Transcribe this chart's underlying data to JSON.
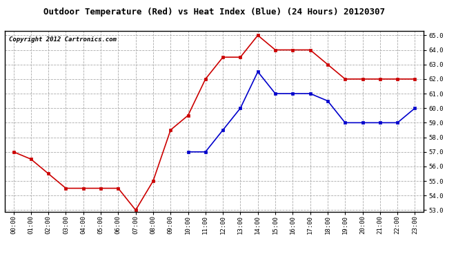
{
  "title": "Outdoor Temperature (Red) vs Heat Index (Blue) (24 Hours) 20120307",
  "copyright": "Copyright 2012 Cartronics.com",
  "x_labels": [
    "00:00",
    "01:00",
    "02:00",
    "03:00",
    "04:00",
    "05:00",
    "06:00",
    "07:00",
    "08:00",
    "09:00",
    "10:00",
    "11:00",
    "12:00",
    "13:00",
    "14:00",
    "15:00",
    "16:00",
    "17:00",
    "18:00",
    "19:00",
    "20:00",
    "21:00",
    "22:00",
    "23:00"
  ],
  "red_temp": [
    57.0,
    56.5,
    55.5,
    54.5,
    54.5,
    54.5,
    54.5,
    53.0,
    55.0,
    58.5,
    59.5,
    62.0,
    63.5,
    63.5,
    65.0,
    64.0,
    64.0,
    64.0,
    63.0,
    62.0,
    62.0,
    62.0,
    62.0,
    62.0
  ],
  "blue_temp": [
    null,
    null,
    null,
    null,
    null,
    null,
    null,
    null,
    null,
    null,
    57.0,
    57.0,
    58.5,
    60.0,
    62.5,
    61.0,
    61.0,
    61.0,
    60.5,
    59.0,
    59.0,
    59.0,
    59.0,
    60.0
  ],
  "ylim_min": 53.0,
  "ylim_max": 65.0,
  "ytick_step": 1.0,
  "red_color": "#cc0000",
  "blue_color": "#0000cc",
  "grid_color": "#aaaaaa",
  "bg_color": "#ffffff",
  "title_fontsize": 9,
  "copyright_fontsize": 6.5,
  "tick_fontsize": 6.5
}
